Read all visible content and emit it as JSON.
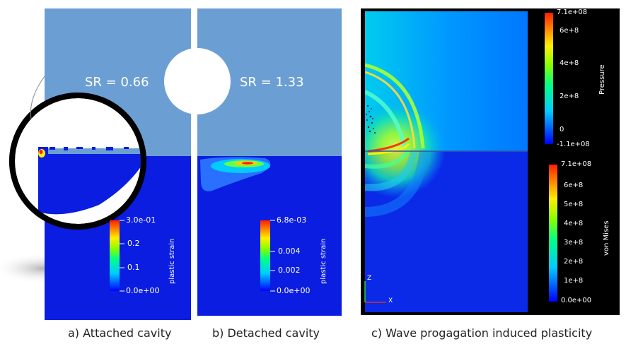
{
  "panel_a": {
    "sr_label": "SR = 0.66",
    "colorbar": {
      "title": "plastic strain",
      "ticks": [
        "3.0e-01",
        "0.2",
        "0.1",
        "0.0e+00"
      ]
    },
    "caption": "a) Attached cavity"
  },
  "panel_b": {
    "sr_label": "SR = 1.33",
    "colorbar": {
      "title": "plastic strain",
      "ticks": [
        "6.8e-03",
        "0.004",
        "0.002",
        "0.0e+00"
      ]
    },
    "caption": "b) Detached cavity"
  },
  "panel_c": {
    "pressure_colorbar": {
      "title": "Pressure",
      "ticks": [
        "7.1e+08",
        "6e+8",
        "4e+8",
        "2e+8",
        "0",
        "-1.1e+08"
      ]
    },
    "vonmises_colorbar": {
      "title": "von Mises",
      "ticks": [
        "7.1e+08",
        "6e+8",
        "5e+8",
        "4e+8",
        "3e+8",
        "2e+8",
        "1e+8",
        "0.0e+00"
      ]
    },
    "axis_z": "Z",
    "axis_x": "X",
    "caption": "c) Wave progagation induced plasticity"
  },
  "colors": {
    "water": "#6b9fd4",
    "solid": "#0a1de0",
    "background_c": "#000000"
  }
}
